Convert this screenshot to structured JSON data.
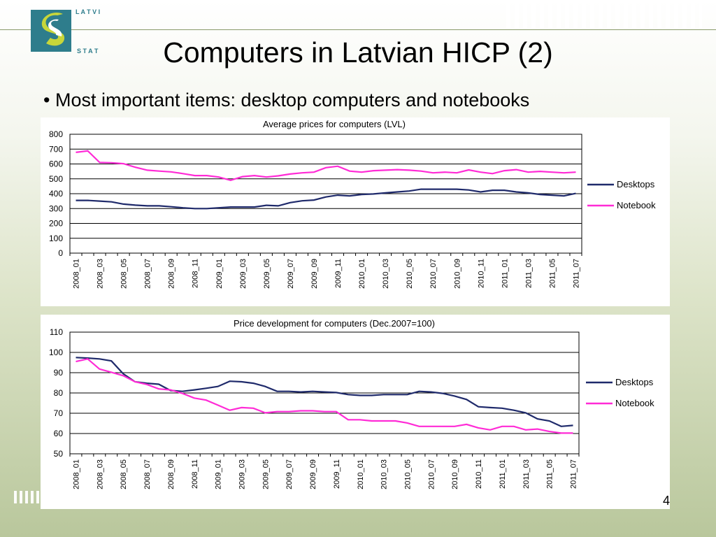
{
  "slide": {
    "title": "Computers in Latvian HICP (2)",
    "bullet": "• Most important items: desktop computers and notebooks",
    "page_number": "4",
    "logo_text": "LATVIJAS STATISTIKA",
    "colors": {
      "logo_teal": "#2e7d8c",
      "logo_green": "#c7d63a",
      "desktops": "#1f2a6b",
      "notebook": "#ff2bd6"
    }
  },
  "chart_data": [
    {
      "type": "line",
      "title": "Average prices for computers (LVL)",
      "ylim": [
        0,
        800
      ],
      "yticks": [
        0,
        100,
        200,
        300,
        400,
        500,
        600,
        700,
        800
      ],
      "grid": true,
      "legend": "right",
      "categories": [
        "2008_01",
        "2008_02",
        "2008_03",
        "2008_04",
        "2008_05",
        "2008_06",
        "2008_07",
        "2008_08",
        "2008_09",
        "2008_10",
        "2008_11",
        "2008_12",
        "2009_01",
        "2009_02",
        "2009_03",
        "2009_04",
        "2009_05",
        "2009_06",
        "2009_07",
        "2009_08",
        "2009_09",
        "2009_10",
        "2009_11",
        "2009_12",
        "2010_01",
        "2010_02",
        "2010_03",
        "2010_04",
        "2010_05",
        "2010_06",
        "2010_07",
        "2010_08",
        "2010_09",
        "2010_10",
        "2010_11",
        "2010_12",
        "2011_01",
        "2011_02",
        "2011_03",
        "2011_04",
        "2011_05",
        "2011_06",
        "2011_07"
      ],
      "tick_labels": [
        "2008_01",
        "2008_03",
        "2008_05",
        "2008_07",
        "2008_09",
        "2008_11",
        "2009_01",
        "2009_03",
        "2009_05",
        "2009_07",
        "2009_09",
        "2009_11",
        "2010_01",
        "2010_03",
        "2010_05",
        "2010_07",
        "2010_09",
        "2010_11",
        "2011_01",
        "2011_03",
        "2011_05",
        "2011_07"
      ],
      "series": [
        {
          "name": "Desktops",
          "color": "#1f2a6b",
          "values": [
            355,
            355,
            350,
            345,
            330,
            323,
            318,
            318,
            312,
            305,
            300,
            300,
            305,
            310,
            310,
            310,
            322,
            318,
            340,
            352,
            357,
            378,
            390,
            385,
            395,
            398,
            405,
            412,
            418,
            430,
            430,
            430,
            430,
            425,
            412,
            423,
            423,
            412,
            405,
            395,
            390,
            385,
            402
          ]
        },
        {
          "name": "Notebook",
          "color": "#ff2bd6",
          "values": [
            678,
            688,
            610,
            608,
            602,
            578,
            558,
            552,
            547,
            535,
            522,
            522,
            512,
            490,
            515,
            522,
            512,
            520,
            532,
            540,
            545,
            575,
            585,
            552,
            545,
            555,
            558,
            562,
            558,
            552,
            540,
            545,
            540,
            560,
            545,
            535,
            555,
            562,
            545,
            550,
            545,
            540,
            545
          ]
        }
      ]
    },
    {
      "type": "line",
      "title": "Price development for computers (Dec.2007=100)",
      "ylim": [
        50,
        110
      ],
      "yticks": [
        50,
        60,
        70,
        80,
        90,
        100,
        110
      ],
      "grid": true,
      "legend": "right",
      "categories": [
        "2008_01",
        "2008_02",
        "2008_03",
        "2008_04",
        "2008_05",
        "2008_06",
        "2008_07",
        "2008_08",
        "2008_09",
        "2008_10",
        "2008_11",
        "2008_12",
        "2009_01",
        "2009_02",
        "2009_03",
        "2009_04",
        "2009_05",
        "2009_06",
        "2009_07",
        "2009_08",
        "2009_09",
        "2009_10",
        "2009_11",
        "2009_12",
        "2010_01",
        "2010_02",
        "2010_03",
        "2010_04",
        "2010_05",
        "2010_06",
        "2010_07",
        "2010_08",
        "2010_09",
        "2010_10",
        "2010_11",
        "2010_12",
        "2011_01",
        "2011_02",
        "2011_03",
        "2011_04",
        "2011_05",
        "2011_06",
        "2011_07"
      ],
      "tick_labels": [
        "2008_01",
        "2008_03",
        "2008_05",
        "2008_07",
        "2008_09",
        "2008_11",
        "2009_01",
        "2009_03",
        "2009_05",
        "2009_07",
        "2009_09",
        "2009_11",
        "2010_01",
        "2010_03",
        "2010_05",
        "2010_07",
        "2010_09",
        "2010_11",
        "2011_01",
        "2011_03",
        "2011_05",
        "2011_07"
      ],
      "series": [
        {
          "name": "Desktops",
          "color": "#1f2a6b",
          "values": [
            97.5,
            97.2,
            96.8,
            95.8,
            89.5,
            85.5,
            84.8,
            84.3,
            81.2,
            80.8,
            81.5,
            82.3,
            83.2,
            85.8,
            85.5,
            84.8,
            83.2,
            80.8,
            80.8,
            80.5,
            80.8,
            80.5,
            80.2,
            79.2,
            78.8,
            78.8,
            79.2,
            79.2,
            79.2,
            80.8,
            80.5,
            79.8,
            78.5,
            76.8,
            73.2,
            72.8,
            72.5,
            71.5,
            70.2,
            67.2,
            66.2,
            63.5,
            64.0
          ]
        },
        {
          "name": "Notebook",
          "color": "#ff2bd6",
          "values": [
            95.5,
            96.8,
            91.8,
            90.2,
            88.5,
            85.5,
            84.2,
            82.0,
            81.5,
            79.8,
            77.5,
            76.5,
            74.0,
            71.5,
            72.8,
            72.5,
            70.2,
            70.8,
            70.8,
            71.2,
            71.2,
            70.8,
            70.8,
            66.8,
            66.8,
            66.2,
            66.2,
            66.2,
            65.2,
            63.5,
            63.5,
            63.5,
            63.5,
            64.5,
            62.8,
            61.8,
            63.5,
            63.5,
            61.8,
            62.2,
            61.0,
            60.2,
            60.2
          ]
        }
      ]
    }
  ]
}
